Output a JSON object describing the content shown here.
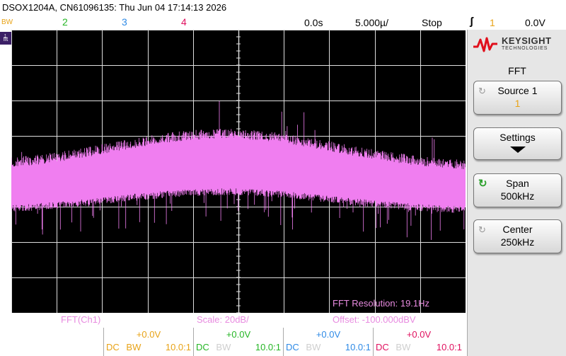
{
  "header": {
    "title": "DSOX1204A, CN61096135: Thu Jun 04 17:14:13 2026",
    "delay": "0.0s",
    "timebase": "5.000µ/",
    "run_state": "Stop",
    "trigger_icon": "trigger-edge-icon",
    "trigger_source": "1",
    "trigger_level": "0.0V"
  },
  "channel_tabs": {
    "bw": "BW",
    "ch2": "2",
    "ch3": "3",
    "ch4": "4"
  },
  "fft_badge": "fft",
  "fft_overlay": {
    "resolution": "FFT Resolution: 19.1Hz"
  },
  "fft_bar": {
    "label": "FFT(Ch1)",
    "scale": "Scale: 20dB/",
    "offset": "Offset: -100.000dBV"
  },
  "brand": {
    "name": "KEYSIGHT",
    "sub": "TECHNOLOGIES"
  },
  "softkeys": {
    "menu_title": "FFT",
    "source": {
      "label": "Source 1",
      "value": "1"
    },
    "settings": {
      "label": "Settings"
    },
    "span": {
      "label": "Span",
      "value": "500kHz"
    },
    "center": {
      "label": "Center",
      "value": "250kHz"
    }
  },
  "channels": [
    {
      "offset": "+0.0V",
      "coupling": "DC",
      "bw": "BW",
      "probe": "10.0:1",
      "color": "#e8a317"
    },
    {
      "offset": "+0.0V",
      "coupling": "DC",
      "bw": "BW",
      "probe": "10.0:1",
      "color": "#25b625"
    },
    {
      "offset": "+0.0V",
      "coupling": "DC",
      "bw": "BW",
      "probe": "10.0:1",
      "color": "#2e8ae6"
    },
    {
      "offset": "+0.0V",
      "coupling": "DC",
      "bw": "BW",
      "probe": "10.0:1",
      "color": "#e0115f"
    }
  ],
  "colors": {
    "fft": "#f07ef0",
    "ch1": "#e8a317",
    "ch2": "#25b625",
    "ch3": "#2e8ae6",
    "ch4": "#e0115f",
    "grid_bg": "#000000",
    "grid_line": "#dddddd"
  }
}
